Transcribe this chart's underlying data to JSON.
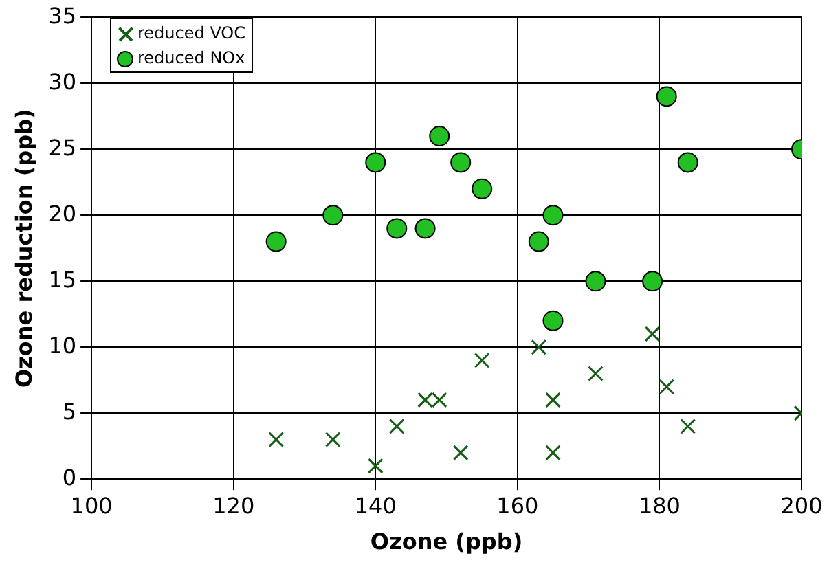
{
  "chart_data": {
    "type": "scatter",
    "xlabel": "Ozone (ppb)",
    "ylabel": "Ozone reduction (ppb)",
    "xlim": [
      100,
      200
    ],
    "xticks": [
      100,
      120,
      140,
      160,
      180,
      200
    ],
    "ylim": [
      0,
      35
    ],
    "yticks": [
      0,
      5,
      10,
      15,
      20,
      25,
      30,
      35
    ],
    "grid": true,
    "legend": "top left",
    "x": [
      126,
      134,
      140,
      143,
      147,
      149,
      152,
      155,
      163,
      165,
      165,
      171,
      179,
      181,
      184,
      200
    ],
    "series": [
      {
        "name": "reduced VOC",
        "color": "#155c15",
        "marker": "cross",
        "values": [
          3,
          3,
          1,
          4,
          6,
          6,
          2,
          9,
          10,
          6,
          2,
          8,
          11,
          7,
          4,
          5
        ]
      },
      {
        "name": "reduced NOx",
        "color": "#22c022",
        "marker": "circle",
        "values": [
          18,
          20,
          24,
          19,
          19,
          26,
          24,
          22,
          18,
          20,
          12,
          15,
          15,
          29,
          24,
          25
        ]
      }
    ]
  }
}
